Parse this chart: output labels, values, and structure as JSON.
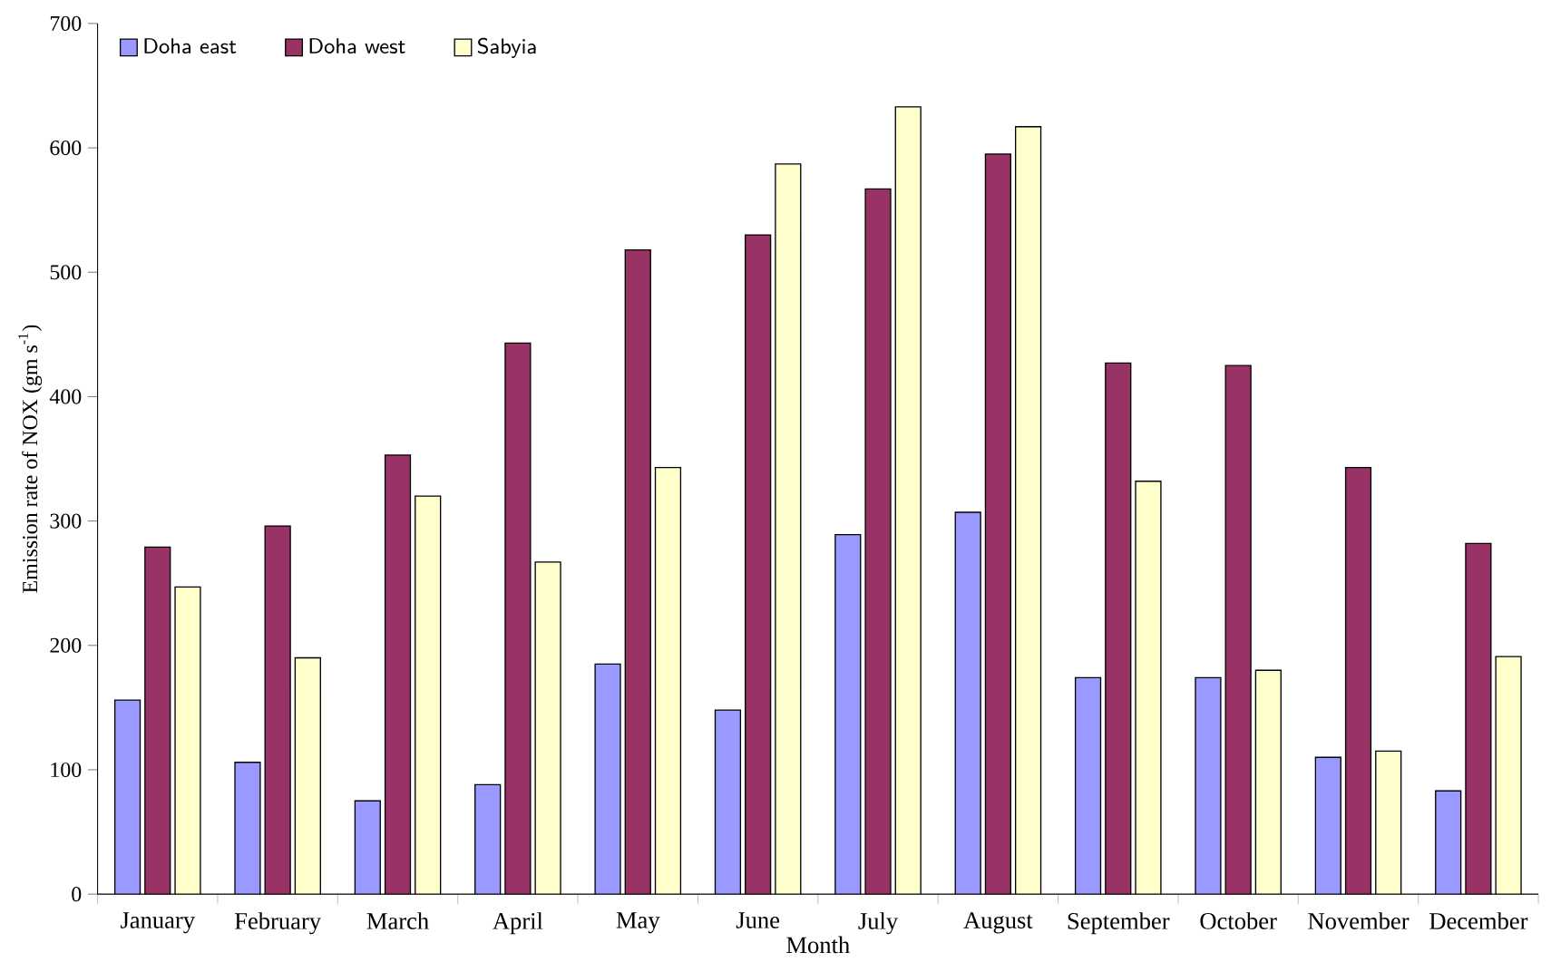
{
  "chart_data": {
    "type": "bar",
    "xlabel": "Month",
    "ylabel": "Emission rate of NOX (gm s$^{-1}$)",
    "categories": [
      "January",
      "February",
      "March",
      "April",
      "May",
      "June",
      "July",
      "August",
      "September",
      "October",
      "November",
      "December"
    ],
    "series": [
      {
        "name": "Doha east",
        "color": "#9999ff",
        "values": [
          156,
          106,
          75,
          88,
          185,
          148,
          289,
          307,
          174,
          174,
          110,
          83
        ]
      },
      {
        "name": "Doha west",
        "color": "#993366",
        "values": [
          279,
          296,
          353,
          443,
          518,
          530,
          567,
          595,
          427,
          425,
          343,
          282
        ]
      },
      {
        "name": "Sabyia",
        "color": "#ffffcc",
        "values": [
          247,
          190,
          320,
          267,
          343,
          587,
          633,
          617,
          332,
          180,
          115,
          191
        ]
      }
    ],
    "ylim": [
      0,
      700
    ],
    "yticks": [
      0,
      100,
      200,
      300,
      400,
      500,
      600,
      700
    ],
    "grid": false,
    "legend": "top left"
  }
}
